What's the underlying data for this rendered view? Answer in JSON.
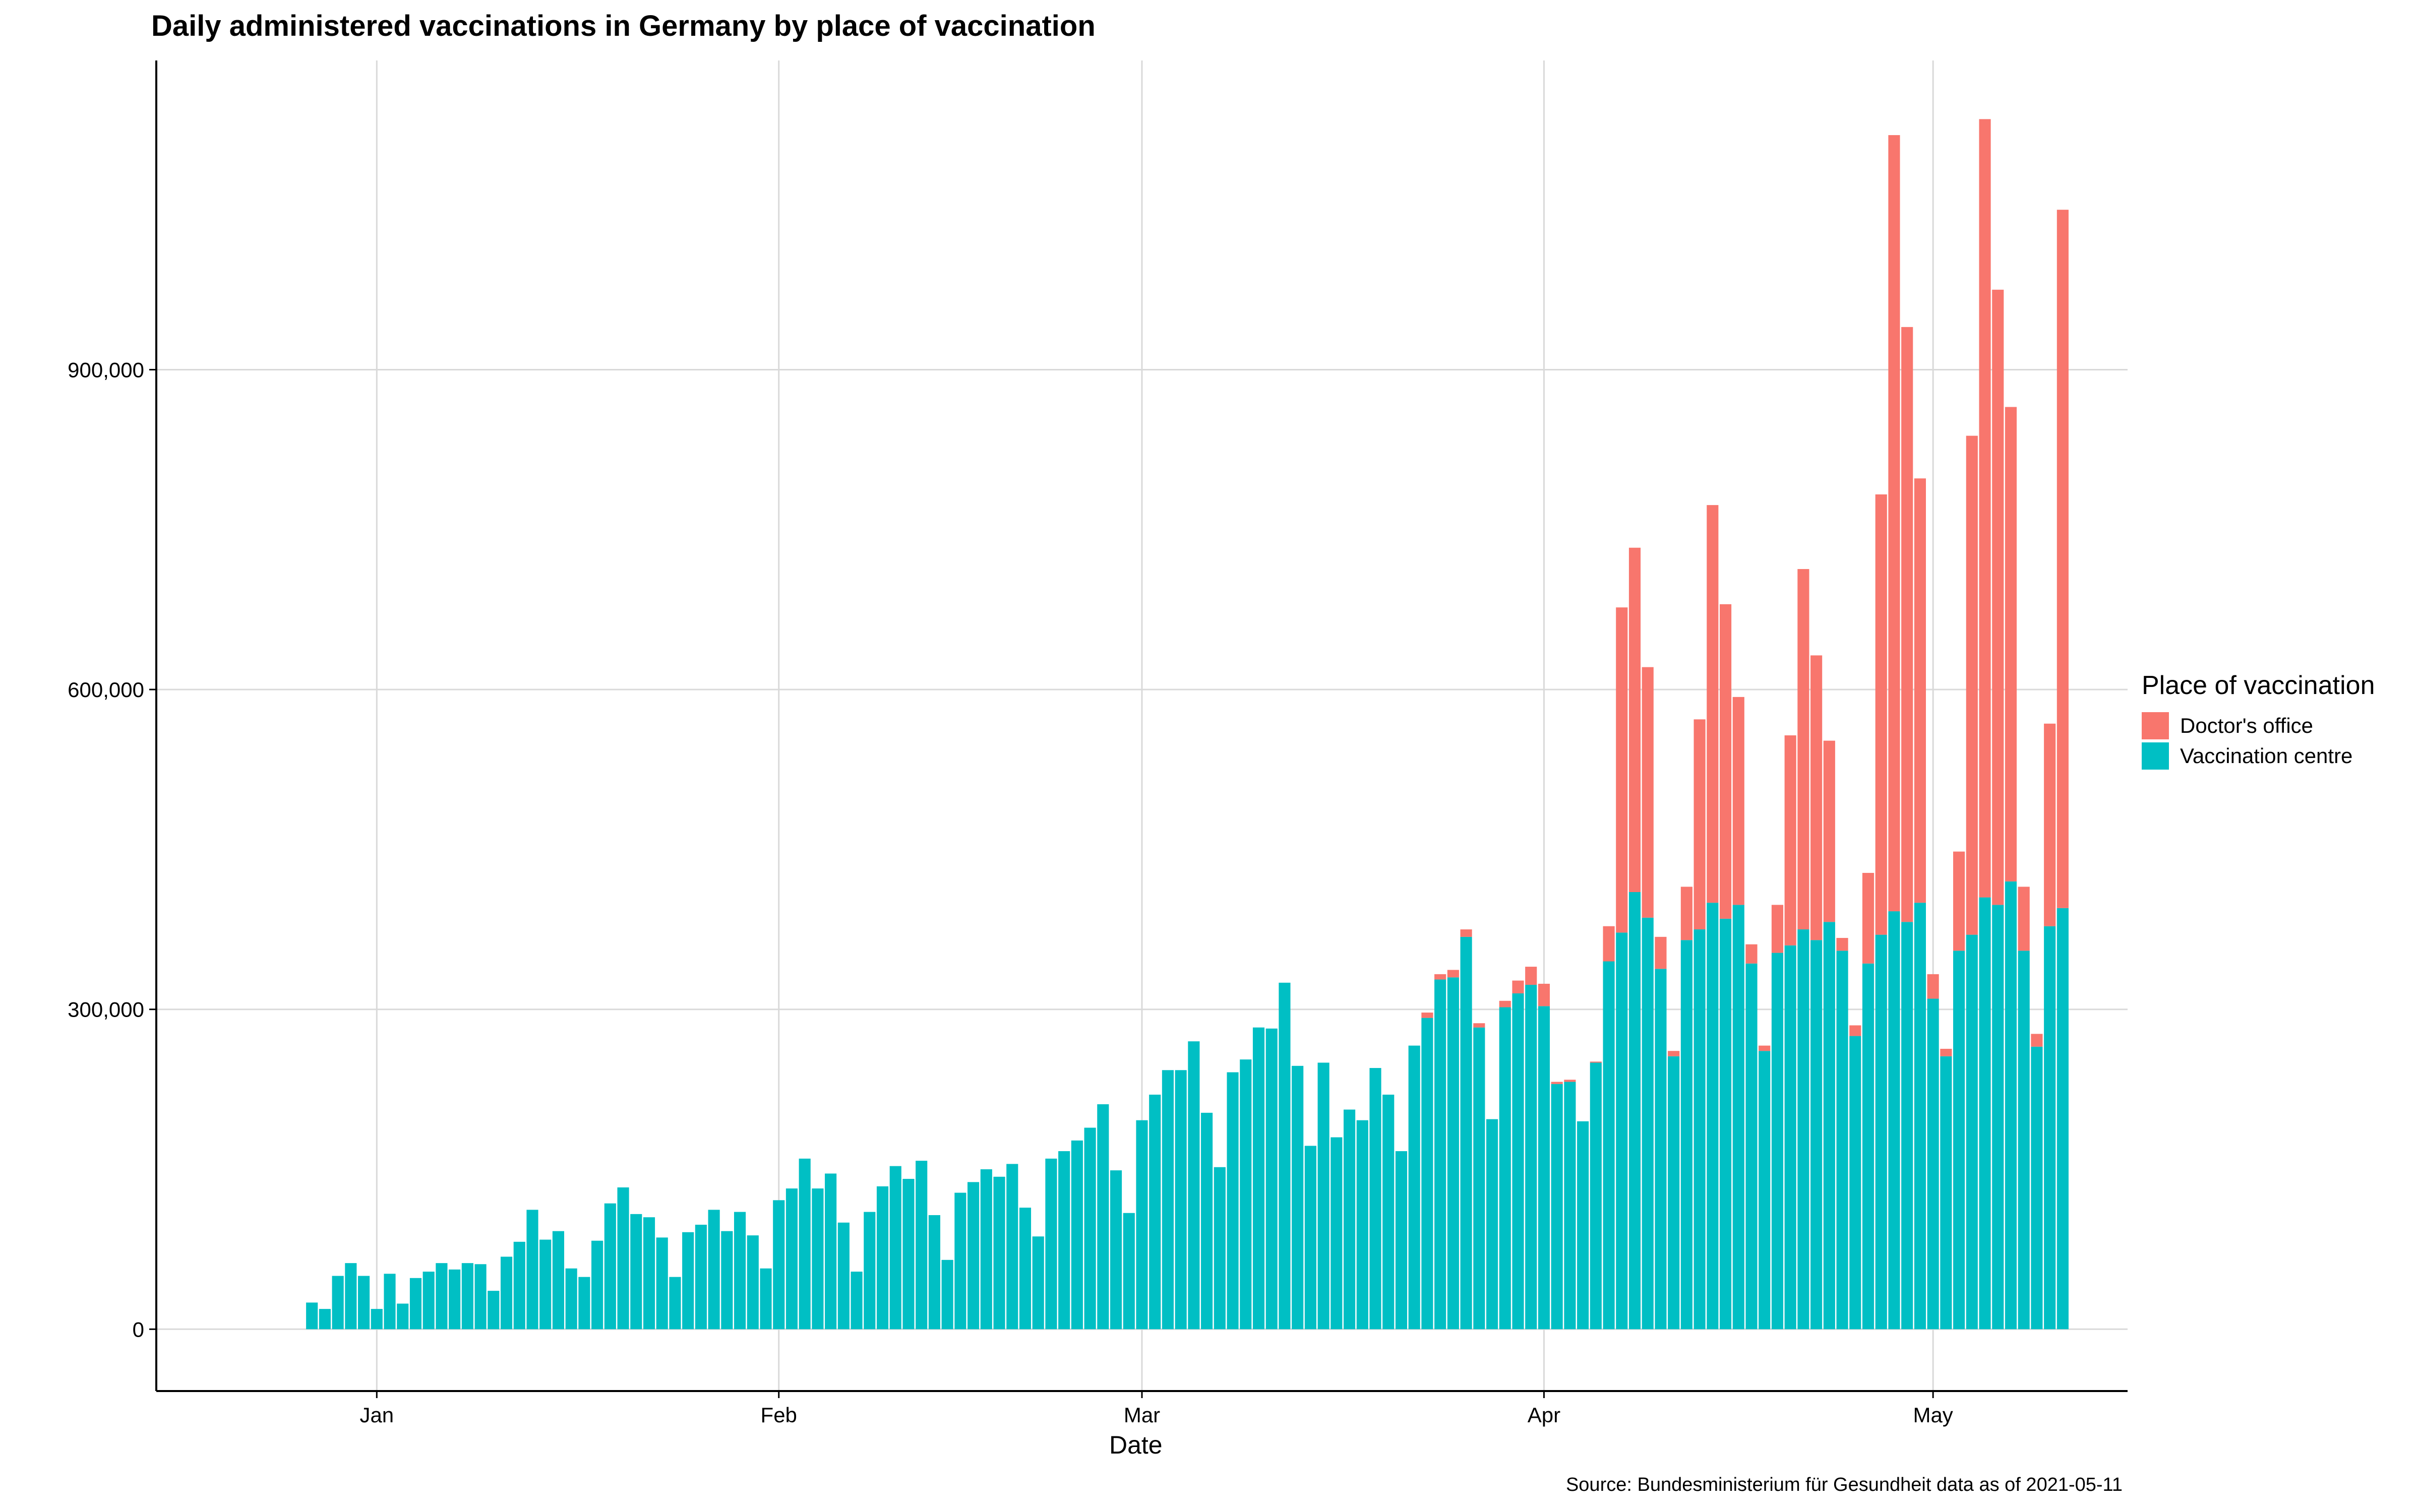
{
  "chart_data": {
    "type": "bar",
    "stacked": true,
    "title": "Daily administered vaccinations in Germany by place of vaccination",
    "xlabel": "Date",
    "ylabel": "",
    "source": "Source: Bundesministerium für Gesundheit data as of 2021-05-11",
    "legend": {
      "title": "Place of vaccination",
      "position": "right",
      "entries": [
        "Doctor's office",
        "Vaccination centre"
      ]
    },
    "colors": {
      "doctor": "#F8766D",
      "centre": "#00BFC4"
    },
    "grid": true,
    "xlim": [
      "2020-12-15",
      "2021-05-16"
    ],
    "ylim": [
      -58000,
      1190000
    ],
    "yticks": [
      0,
      300000,
      600000,
      900000
    ],
    "ytick_labels": [
      "0",
      "300,000",
      "600,000",
      "900,000"
    ],
    "xticks": [
      "2021-01-01",
      "2021-02-01",
      "2021-03-01",
      "2021-04-01",
      "2021-05-01"
    ],
    "xtick_labels": [
      "Jan",
      "Feb",
      "Mar",
      "Apr",
      "May"
    ],
    "start_date": "2020-12-27",
    "series": [
      {
        "name": "Vaccination centre",
        "values": [
          25000,
          19000,
          50000,
          62000,
          50000,
          19000,
          52000,
          24000,
          48000,
          54000,
          62000,
          56000,
          62000,
          61000,
          36000,
          68000,
          82000,
          112000,
          84000,
          92000,
          57000,
          49000,
          83000,
          118000,
          133000,
          108000,
          105000,
          86000,
          49000,
          91000,
          98000,
          112000,
          92000,
          110000,
          88000,
          57000,
          121000,
          132000,
          160000,
          132000,
          146000,
          100000,
          54000,
          110000,
          134000,
          153000,
          141000,
          158000,
          107000,
          65000,
          128000,
          138000,
          150000,
          143000,
          155000,
          114000,
          87000,
          160000,
          167000,
          177000,
          189000,
          211000,
          149000,
          109000,
          196000,
          220000,
          243000,
          243000,
          270000,
          203000,
          152000,
          241000,
          253000,
          283000,
          282000,
          325000,
          247000,
          172000,
          250000,
          180000,
          206000,
          196000,
          245000,
          220000,
          167000,
          266000,
          292000,
          328000,
          330000,
          368000,
          283000,
          197000,
          302000,
          315000,
          323000,
          303000,
          230000,
          232000,
          195000,
          250000,
          345000,
          372000,
          410000,
          386000,
          338000,
          256000,
          365000,
          375000,
          400000,
          385000,
          398000,
          343000,
          261000,
          353000,
          360000,
          375000,
          365000,
          382000,
          355000,
          275000,
          343000,
          370000,
          392000,
          382000,
          400000,
          310000,
          256000,
          355000,
          370000,
          405000,
          398000,
          420000,
          355000,
          265000,
          378000,
          395000
        ]
      },
      {
        "name": "Doctor's office",
        "values": [
          0,
          0,
          0,
          0,
          0,
          0,
          0,
          0,
          0,
          0,
          0,
          0,
          0,
          0,
          0,
          0,
          0,
          0,
          0,
          0,
          0,
          0,
          0,
          0,
          0,
          0,
          0,
          0,
          0,
          0,
          0,
          0,
          0,
          0,
          0,
          0,
          0,
          0,
          0,
          0,
          0,
          0,
          0,
          0,
          0,
          0,
          0,
          0,
          0,
          0,
          0,
          0,
          0,
          0,
          0,
          0,
          0,
          0,
          0,
          0,
          0,
          0,
          0,
          0,
          0,
          0,
          0,
          0,
          0,
          0,
          0,
          0,
          0,
          0,
          0,
          0,
          0,
          0,
          0,
          0,
          0,
          0,
          0,
          0,
          0,
          0,
          5000,
          5000,
          7000,
          7000,
          4000,
          0,
          6000,
          12000,
          17000,
          21000,
          2000,
          2000,
          0,
          1000,
          33000,
          305000,
          323000,
          235000,
          30000,
          5000,
          50000,
          197000,
          373000,
          295000,
          195000,
          18000,
          5000,
          45000,
          197000,
          338000,
          267000,
          170000,
          12000,
          10000,
          85000,
          413000,
          728000,
          558000,
          398000,
          23000,
          7000,
          93000,
          468000,
          730000,
          577000,
          445000,
          60000,
          12000,
          190000,
          655000
        ]
      }
    ]
  }
}
